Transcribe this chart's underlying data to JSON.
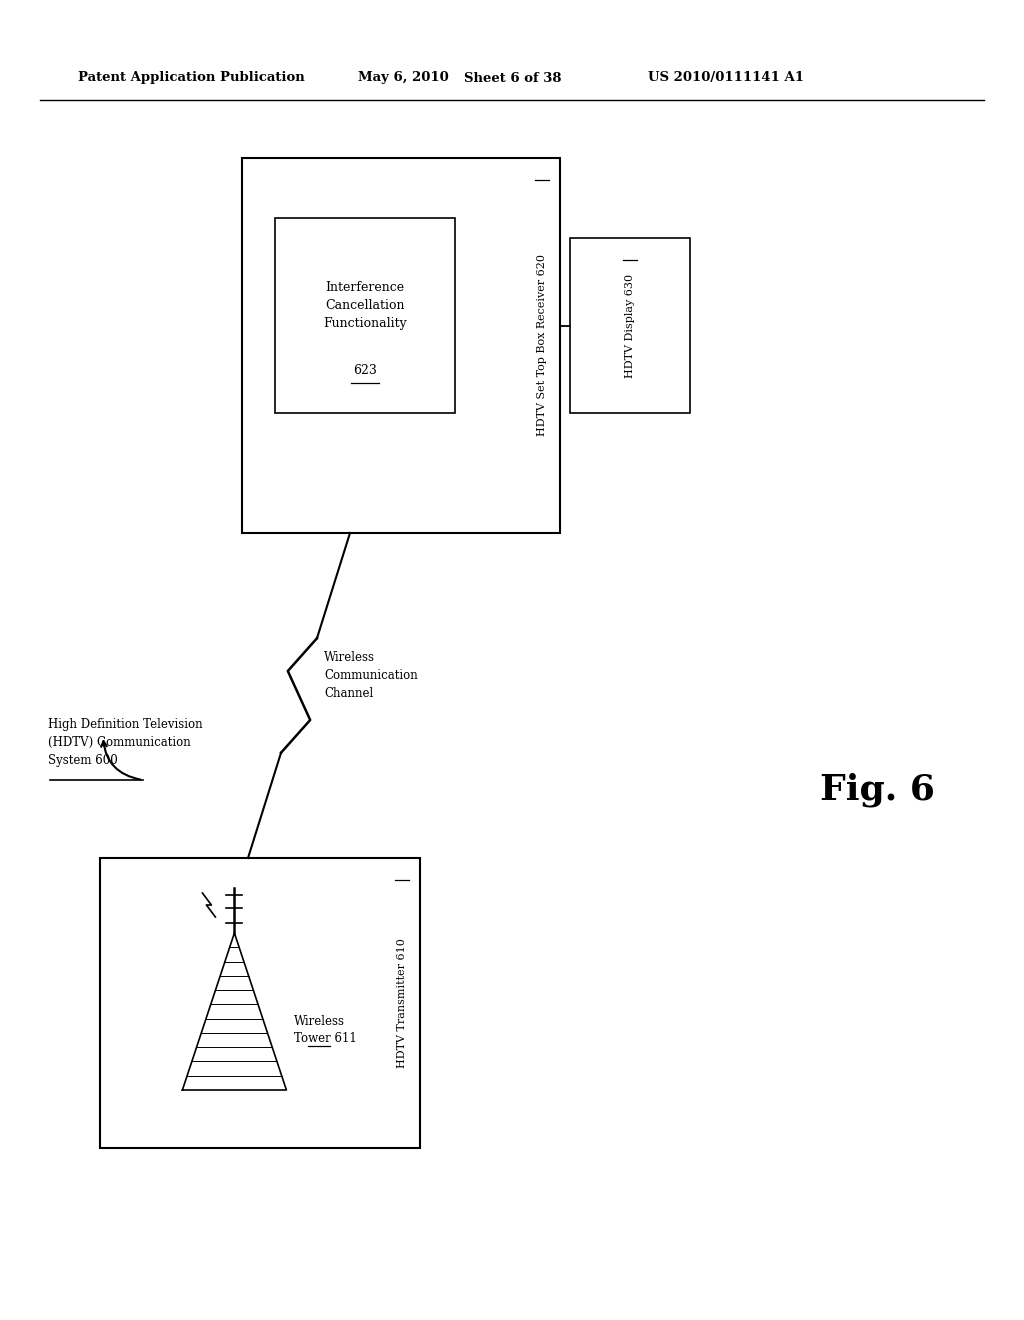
{
  "bg_color": "#ffffff",
  "header_text": "Patent Application Publication",
  "header_date": "May 6, 2010",
  "header_sheet": "Sheet 6 of 38",
  "header_patent": "US 2010/0111141 A1",
  "fig_label": "Fig. 6",
  "system_label_line1": "High Definition Television",
  "system_label_line2": "(HDTV) Communication",
  "system_label_line3": "System 600",
  "transmitter_label": "HDTV Transmitter 610",
  "tower_label_line1": "Wireless",
  "tower_label_line2": "Tower 611",
  "receiver_label": "HDTV Set Top Box Receiver 620",
  "icf_label_line1": "Interference",
  "icf_label_line2": "Cancellation",
  "icf_label_line3": "Functionality",
  "icf_label_line4": "623",
  "display_label": "HDTV Display 630",
  "wireless_label_line1": "Wireless",
  "wireless_label_line2": "Communication",
  "wireless_label_line3": "Channel"
}
